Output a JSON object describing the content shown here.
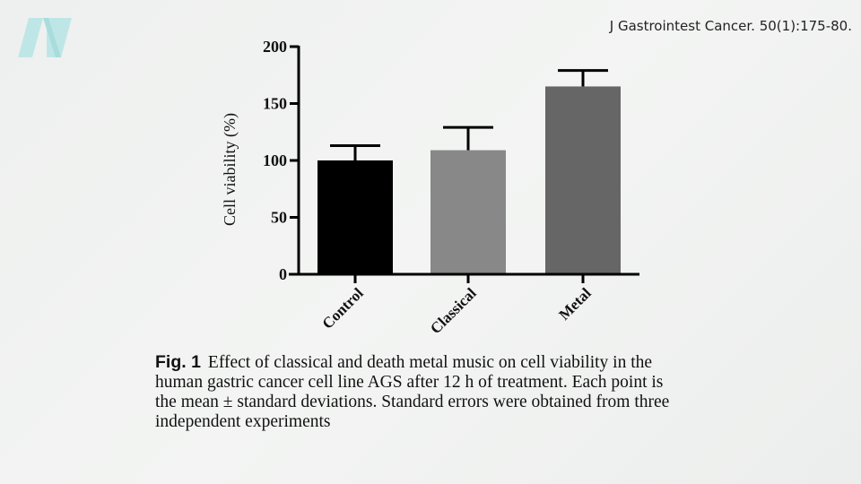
{
  "citation": "J Gastrointest Cancer. 50(1):175-80.",
  "logo": {
    "name": "N",
    "color": "#bfe6e6"
  },
  "caption": {
    "fig_label": "Fig. 1",
    "lines": [
      "Effect of classical and death metal music on cell viability in the",
      "human gastric cancer cell line AGS after 12 h of treatment. Each point is",
      "the mean ± standard deviations. Standard errors were obtained from three",
      "independent experiments"
    ]
  },
  "chart_data": {
    "type": "bar",
    "categories": [
      "Control",
      "Classical",
      "Metal"
    ],
    "values": [
      100,
      109,
      165
    ],
    "error_upper": [
      13,
      20,
      14
    ],
    "colors": [
      "#000000",
      "#888888",
      "#666666"
    ],
    "ylabel": "Cell viability (%)",
    "xlabel": "",
    "ylim": [
      0,
      200
    ],
    "yticks": [
      "0",
      "50",
      "100",
      "150",
      "200"
    ],
    "grid": false
  }
}
